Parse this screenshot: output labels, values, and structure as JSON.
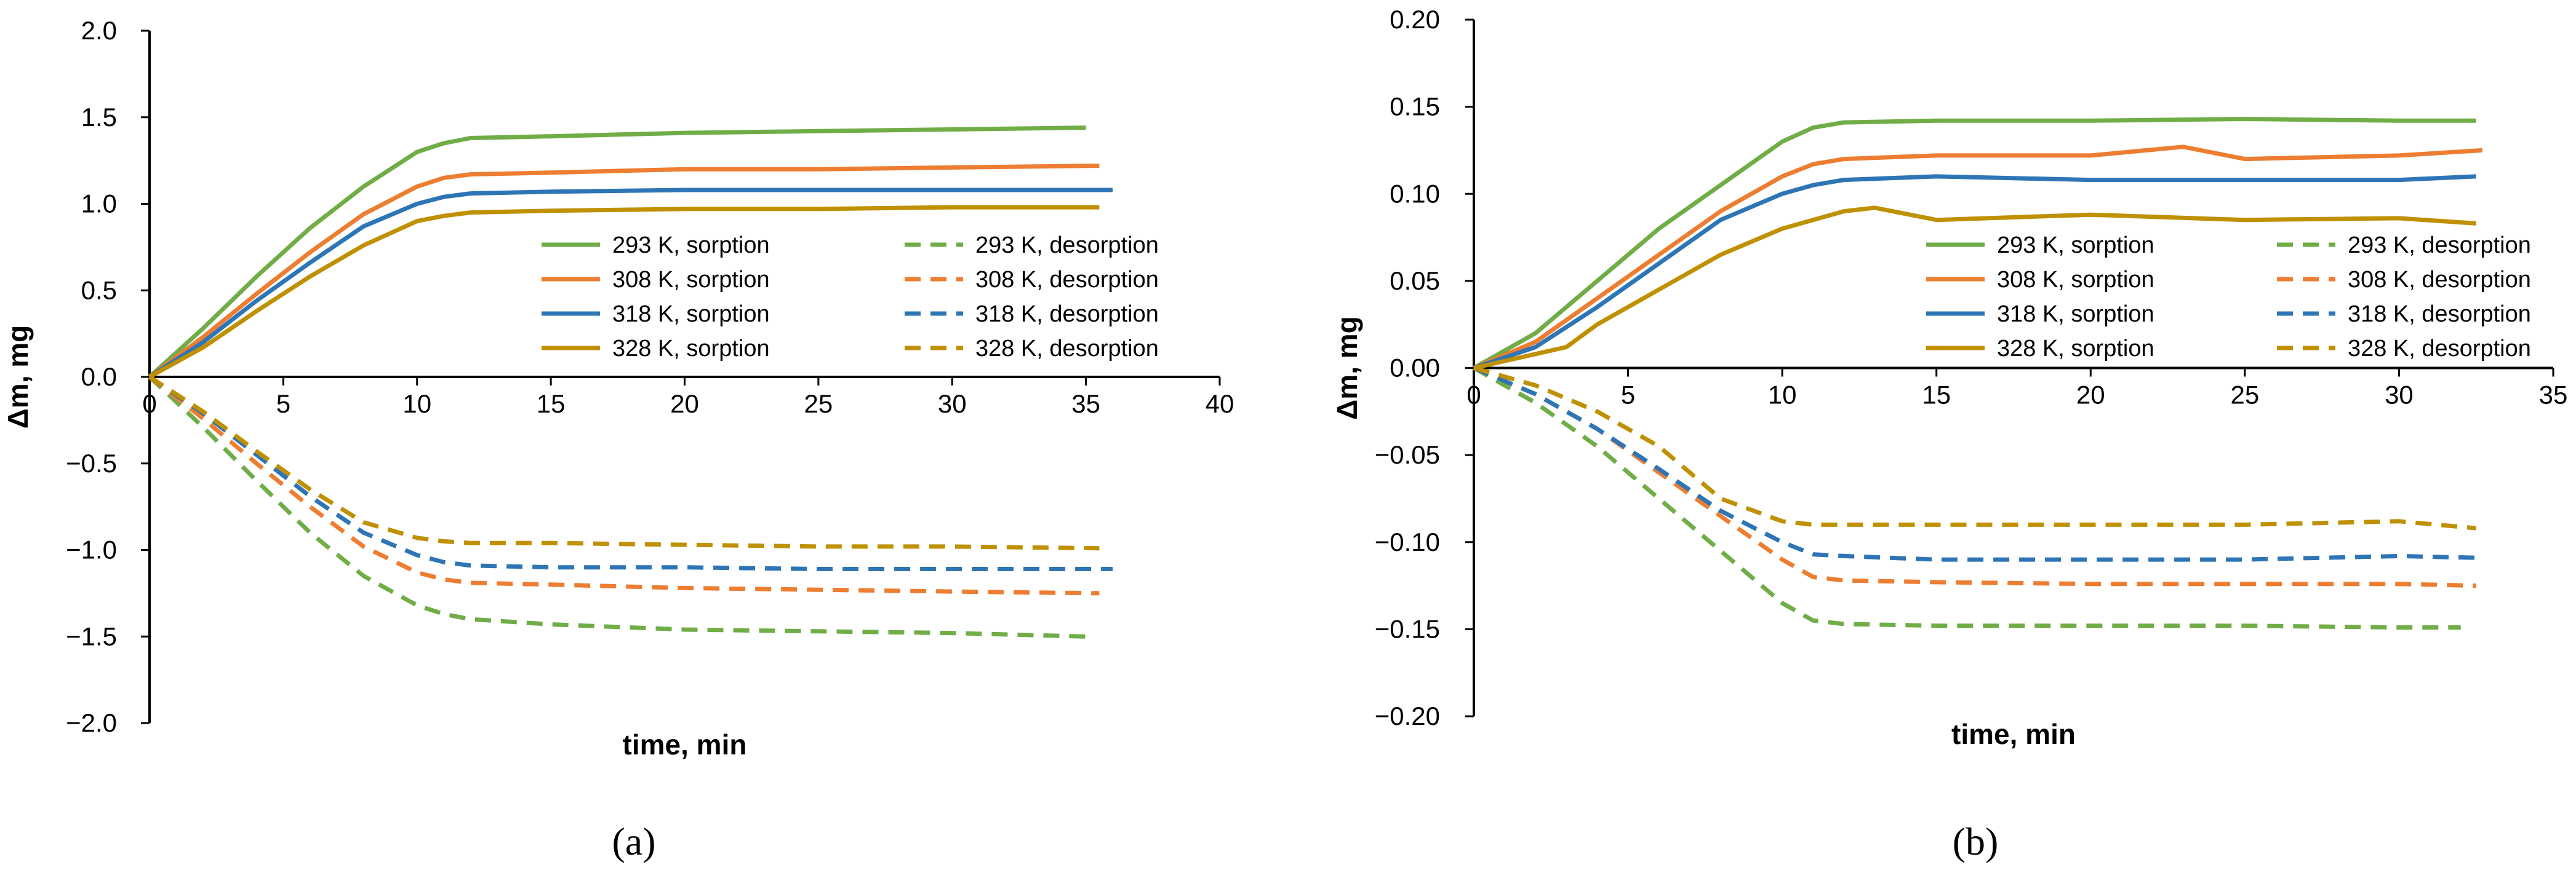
{
  "colors": {
    "293": "#70ad47",
    "308": "#ed7d31",
    "318": "#2e75b6",
    "328": "#bf9000"
  },
  "chart_data": [
    {
      "id": "a",
      "caption": "(a)",
      "type": "line",
      "xlabel": "time, min",
      "ylabel": "Δm, mg",
      "xlim": [
        0,
        40
      ],
      "ylim": [
        -2.0,
        2.0
      ],
      "xticks": [
        0,
        5,
        10,
        15,
        20,
        25,
        30,
        35,
        40
      ],
      "yticks": [
        2.0,
        1.5,
        1.0,
        0.5,
        0.0,
        -0.5,
        -1.0,
        -1.5,
        -2.0
      ],
      "yticklabels": [
        "2.0",
        "1.5",
        "1.0",
        "0.5",
        "0.0",
        "−0.5",
        "−1.0",
        "−1.5",
        "−2.0"
      ],
      "legend_position": "center-right",
      "series": [
        {
          "name": "293 K, sorption",
          "temp": "293",
          "style": "solid",
          "x": [
            0,
            2,
            4,
            6,
            8,
            10,
            11,
            12,
            15,
            20,
            25,
            30,
            35
          ],
          "y": [
            0,
            0.28,
            0.58,
            0.86,
            1.1,
            1.3,
            1.35,
            1.38,
            1.39,
            1.41,
            1.42,
            1.43,
            1.44
          ]
        },
        {
          "name": "293 K, desorption",
          "temp": "293",
          "style": "dashed",
          "x": [
            0,
            2,
            4,
            6,
            8,
            10,
            11,
            12,
            15,
            20,
            25,
            30,
            35
          ],
          "y": [
            0,
            -0.29,
            -0.6,
            -0.9,
            -1.15,
            -1.32,
            -1.37,
            -1.4,
            -1.43,
            -1.46,
            -1.47,
            -1.48,
            -1.5
          ]
        },
        {
          "name": "308 K, sorption",
          "temp": "308",
          "style": "solid",
          "x": [
            0,
            2,
            4,
            6,
            8,
            10,
            11,
            12,
            15,
            20,
            25,
            30,
            35.5
          ],
          "y": [
            0,
            0.23,
            0.48,
            0.72,
            0.94,
            1.1,
            1.15,
            1.17,
            1.18,
            1.2,
            1.2,
            1.21,
            1.22
          ]
        },
        {
          "name": "308 K, desorption",
          "temp": "308",
          "style": "dashed",
          "x": [
            0,
            2,
            4,
            6,
            8,
            10,
            11,
            12,
            15,
            20,
            25,
            30,
            35.5
          ],
          "y": [
            0,
            -0.24,
            -0.5,
            -0.75,
            -0.98,
            -1.13,
            -1.17,
            -1.19,
            -1.2,
            -1.22,
            -1.23,
            -1.24,
            -1.25
          ]
        },
        {
          "name": "318 K, sorption",
          "temp": "318",
          "style": "solid",
          "x": [
            0,
            2,
            4,
            6,
            8,
            10,
            11,
            12,
            15,
            20,
            25,
            30,
            36
          ],
          "y": [
            0,
            0.2,
            0.44,
            0.66,
            0.87,
            1.0,
            1.04,
            1.06,
            1.07,
            1.08,
            1.08,
            1.08,
            1.08
          ]
        },
        {
          "name": "318 K, desorption",
          "temp": "318",
          "style": "dashed",
          "x": [
            0,
            2,
            4,
            6,
            8,
            10,
            11,
            12,
            15,
            20,
            25,
            30,
            36
          ],
          "y": [
            0,
            -0.21,
            -0.45,
            -0.69,
            -0.9,
            -1.03,
            -1.07,
            -1.09,
            -1.1,
            -1.1,
            -1.11,
            -1.11,
            -1.11
          ]
        },
        {
          "name": "328 K, sorption",
          "temp": "328",
          "style": "solid",
          "x": [
            0,
            2,
            4,
            6,
            8,
            10,
            11,
            12,
            15,
            20,
            25,
            30,
            35.5
          ],
          "y": [
            0,
            0.17,
            0.38,
            0.58,
            0.76,
            0.9,
            0.93,
            0.95,
            0.96,
            0.97,
            0.97,
            0.98,
            0.98
          ]
        },
        {
          "name": "328 K, desorption",
          "temp": "328",
          "style": "dashed",
          "x": [
            0,
            2,
            4,
            6,
            8,
            10,
            11,
            12,
            15,
            20,
            25,
            30,
            35.5
          ],
          "y": [
            0,
            -0.2,
            -0.43,
            -0.65,
            -0.84,
            -0.93,
            -0.95,
            -0.96,
            -0.96,
            -0.97,
            -0.98,
            -0.98,
            -0.99
          ]
        }
      ]
    },
    {
      "id": "b",
      "caption": "(b)",
      "type": "line",
      "xlabel": "time, min",
      "ylabel": "Δm, mg",
      "xlim": [
        0,
        35
      ],
      "ylim": [
        -0.2,
        0.2
      ],
      "xticks": [
        0,
        5,
        10,
        15,
        20,
        25,
        30,
        35
      ],
      "yticks": [
        0.2,
        0.15,
        0.1,
        0.05,
        0.0,
        -0.05,
        -0.1,
        -0.15,
        -0.2
      ],
      "yticklabels": [
        "0.20",
        "0.15",
        "0.10",
        "0.05",
        "0.00",
        "−0.05",
        "−0.10",
        "−0.15",
        "−0.20"
      ],
      "legend_position": "center-right",
      "series": [
        {
          "name": "293 K, sorption",
          "temp": "293",
          "style": "solid",
          "x": [
            0,
            2,
            4,
            6,
            8,
            10,
            11,
            12,
            15,
            20,
            25,
            30,
            32.5
          ],
          "y": [
            0,
            0.02,
            0.05,
            0.08,
            0.105,
            0.13,
            0.138,
            0.141,
            0.142,
            0.142,
            0.143,
            0.142,
            0.142
          ]
        },
        {
          "name": "293 K, desorption",
          "temp": "293",
          "style": "dashed",
          "x": [
            0,
            2,
            4,
            6,
            8,
            10,
            11,
            12,
            15,
            20,
            25,
            30,
            32
          ],
          "y": [
            0,
            -0.02,
            -0.045,
            -0.075,
            -0.105,
            -0.135,
            -0.145,
            -0.147,
            -0.148,
            -0.148,
            -0.148,
            -0.149,
            -0.149
          ]
        },
        {
          "name": "308 K, sorption",
          "temp": "308",
          "style": "solid",
          "x": [
            0,
            2,
            4,
            6,
            8,
            10,
            11,
            12,
            15,
            20,
            23,
            25,
            30,
            32.7
          ],
          "y": [
            0,
            0.015,
            0.04,
            0.065,
            0.09,
            0.11,
            0.117,
            0.12,
            0.122,
            0.122,
            0.127,
            0.12,
            0.122,
            0.125
          ]
        },
        {
          "name": "308 K, desorption",
          "temp": "308",
          "style": "dashed",
          "x": [
            0,
            2,
            4,
            6,
            8,
            10,
            11,
            12,
            15,
            20,
            25,
            30,
            32.5
          ],
          "y": [
            0,
            -0.015,
            -0.035,
            -0.06,
            -0.085,
            -0.11,
            -0.12,
            -0.122,
            -0.123,
            -0.124,
            -0.124,
            -0.124,
            -0.125
          ]
        },
        {
          "name": "318 K, sorption",
          "temp": "318",
          "style": "solid",
          "x": [
            0,
            2,
            4,
            6,
            8,
            10,
            11,
            12,
            15,
            20,
            25,
            30,
            32.5
          ],
          "y": [
            0,
            0.012,
            0.035,
            0.06,
            0.085,
            0.1,
            0.105,
            0.108,
            0.11,
            0.108,
            0.108,
            0.108,
            0.11
          ]
        },
        {
          "name": "318 K, desorption",
          "temp": "318",
          "style": "dashed",
          "x": [
            0,
            2,
            4,
            6,
            8,
            10,
            11,
            12,
            15,
            20,
            25,
            30,
            32.5
          ],
          "y": [
            0,
            -0.015,
            -0.035,
            -0.058,
            -0.082,
            -0.1,
            -0.107,
            -0.108,
            -0.11,
            -0.11,
            -0.11,
            -0.108,
            -0.109
          ]
        },
        {
          "name": "328 K, sorption",
          "temp": "328",
          "style": "solid",
          "x": [
            0,
            2,
            3,
            4,
            6,
            8,
            10,
            12,
            13,
            15,
            20,
            25,
            30,
            32.5
          ],
          "y": [
            0,
            0.008,
            0.012,
            0.025,
            0.045,
            0.065,
            0.08,
            0.09,
            0.092,
            0.085,
            0.088,
            0.085,
            0.086,
            0.083
          ]
        },
        {
          "name": "328 K, desorption",
          "temp": "328",
          "style": "dashed",
          "x": [
            0,
            2,
            4,
            6,
            8,
            10,
            11,
            12,
            15,
            20,
            25,
            30,
            32.5
          ],
          "y": [
            0,
            -0.01,
            -0.025,
            -0.045,
            -0.075,
            -0.088,
            -0.09,
            -0.09,
            -0.09,
            -0.09,
            -0.09,
            -0.088,
            -0.092
          ]
        }
      ]
    }
  ]
}
